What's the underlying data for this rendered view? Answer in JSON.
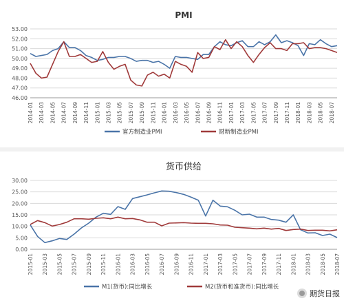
{
  "chart_data": [
    {
      "type": "line",
      "title": "PMI",
      "ylim": [
        46.0,
        53.0
      ],
      "yticks": [
        "53.00",
        "52.00",
        "51.00",
        "50.00",
        "49.00",
        "48.00",
        "47.00",
        "46.00"
      ],
      "ytick_values": [
        53,
        52,
        51,
        50,
        49,
        48,
        47,
        46
      ],
      "x": [
        "2014-01",
        "2014-02",
        "2014-03",
        "2014-04",
        "2014-05",
        "2014-06",
        "2014-07",
        "2014-08",
        "2014-09",
        "2014-10",
        "2014-11",
        "2014-12",
        "2015-01",
        "2015-02",
        "2015-03",
        "2015-04",
        "2015-05",
        "2015-06",
        "2015-07",
        "2015-08",
        "2015-09",
        "2015-10",
        "2015-11",
        "2015-12",
        "2016-01",
        "2016-02",
        "2016-03",
        "2016-04",
        "2016-05",
        "2016-06",
        "2016-07",
        "2016-08",
        "2016-09",
        "2016-10",
        "2016-11",
        "2016-12",
        "2017-01",
        "2017-02",
        "2017-03",
        "2017-04",
        "2017-05",
        "2017-06",
        "2017-07",
        "2017-08",
        "2017-09",
        "2017-10",
        "2017-11",
        "2017-12",
        "2018-01",
        "2018-02",
        "2018-03",
        "2018-04",
        "2018-05",
        "2018-06",
        "2018-07",
        "2018-08"
      ],
      "xticks": [
        "2014-01",
        "2014-03",
        "2014-05",
        "2014-07",
        "2014-09",
        "2014-11",
        "2015-01",
        "2015-03",
        "2015-05",
        "2015-07",
        "2015-09",
        "2015-11",
        "2016-01",
        "2016-03",
        "2016-05",
        "2016-07",
        "2016-09",
        "2016-11",
        "2017-01",
        "2017-03",
        "2017-05",
        "2017-07",
        "2017-09",
        "2017-11",
        "2018-01",
        "2018-03",
        "2018-05",
        "2018-07"
      ],
      "series": [
        {
          "name": "官方制造业PMI",
          "color": "#4a74a8",
          "values": [
            50.5,
            50.2,
            50.3,
            50.4,
            50.8,
            51.0,
            51.7,
            51.1,
            51.1,
            50.8,
            50.3,
            50.1,
            49.8,
            49.9,
            50.1,
            50.1,
            50.2,
            50.2,
            50.0,
            49.7,
            49.8,
            49.8,
            49.6,
            49.7,
            49.4,
            49.0,
            50.2,
            50.1,
            50.1,
            50.0,
            49.9,
            50.4,
            50.4,
            51.2,
            51.7,
            51.4,
            51.3,
            51.6,
            51.8,
            51.2,
            51.2,
            51.7,
            51.4,
            51.7,
            52.4,
            51.6,
            51.8,
            51.6,
            51.3,
            50.3,
            51.5,
            51.4,
            51.9,
            51.5,
            51.2,
            51.3
          ]
        },
        {
          "name": "财新制造业PMI",
          "color": "#a03a3a",
          "values": [
            49.5,
            48.5,
            48.0,
            48.1,
            49.4,
            50.7,
            51.7,
            50.2,
            50.2,
            50.4,
            50.0,
            49.6,
            49.7,
            50.7,
            49.6,
            48.9,
            49.2,
            49.4,
            47.8,
            47.3,
            47.2,
            48.3,
            48.6,
            48.2,
            48.4,
            48.0,
            49.7,
            49.4,
            49.2,
            48.6,
            50.6,
            50.0,
            50.1,
            51.2,
            50.9,
            51.9,
            51.0,
            51.7,
            51.2,
            50.3,
            49.6,
            50.4,
            51.1,
            51.6,
            51.0,
            51.0,
            50.8,
            51.5,
            51.5,
            51.6,
            51.0,
            51.1,
            51.1,
            51.0,
            50.8,
            50.6
          ]
        }
      ],
      "legend_position": "bottom"
    },
    {
      "type": "line",
      "title": "货币供给",
      "ylim": [
        0.0,
        30.0
      ],
      "yticks": [
        "30.00",
        "25.00",
        "20.00",
        "15.00",
        "10.00",
        "5.00",
        "0.00"
      ],
      "ytick_values": [
        30,
        25,
        20,
        15,
        10,
        5,
        0
      ],
      "x": [
        "2015-01",
        "2015-02",
        "2015-03",
        "2015-04",
        "2015-05",
        "2015-06",
        "2015-07",
        "2015-08",
        "2015-09",
        "2015-10",
        "2015-11",
        "2015-12",
        "2016-01",
        "2016-02",
        "2016-03",
        "2016-04",
        "2016-05",
        "2016-06",
        "2016-07",
        "2016-08",
        "2016-09",
        "2016-10",
        "2016-11",
        "2016-12",
        "2017-01",
        "2017-02",
        "2017-03",
        "2017-04",
        "2017-05",
        "2017-06",
        "2017-07",
        "2017-08",
        "2017-09",
        "2017-10",
        "2017-11",
        "2017-12",
        "2018-01",
        "2018-02",
        "2018-03",
        "2018-04",
        "2018-05",
        "2018-06",
        "2018-07"
      ],
      "xticks": [
        "2015-01",
        "2015-03",
        "2015-05",
        "2015-07",
        "2015-09",
        "2015-11",
        "2016-01",
        "2016-03",
        "2016-05",
        "2016-07",
        "2016-09",
        "2016-11",
        "2017-01",
        "2017-03",
        "2017-05",
        "2017-07",
        "2017-09",
        "2017-11",
        "2018-01",
        "2018-03",
        "2018-05",
        "2018-07"
      ],
      "series": [
        {
          "name": "M1(货币):同比增长",
          "color": "#4a74a8",
          "values": [
            10.6,
            5.6,
            2.9,
            3.7,
            4.7,
            4.3,
            6.6,
            9.3,
            11.4,
            14.0,
            15.7,
            15.2,
            18.6,
            17.4,
            22.1,
            22.9,
            23.7,
            24.6,
            25.4,
            25.3,
            24.7,
            23.9,
            22.7,
            21.4,
            14.5,
            21.4,
            18.8,
            18.5,
            17.0,
            15.0,
            15.3,
            14.0,
            14.0,
            13.0,
            12.7,
            11.8,
            15.0,
            8.5,
            7.1,
            7.2,
            6.0,
            6.6,
            5.1
          ]
        },
        {
          "name": "M2(货币和准货币):同比增长",
          "color": "#a03a3a",
          "values": [
            10.8,
            12.5,
            11.6,
            10.1,
            10.8,
            11.8,
            13.3,
            13.3,
            13.1,
            13.5,
            13.7,
            13.3,
            14.0,
            13.3,
            13.4,
            12.8,
            11.8,
            11.8,
            10.2,
            11.4,
            11.5,
            11.6,
            11.4,
            11.3,
            11.3,
            11.1,
            10.6,
            10.5,
            9.6,
            9.4,
            9.2,
            8.9,
            9.2,
            8.8,
            9.1,
            8.2,
            8.6,
            8.8,
            8.2,
            8.3,
            8.3,
            8.0,
            8.5
          ]
        }
      ],
      "legend_position": "bottom"
    }
  ],
  "watermark": {
    "text": "期货日报"
  }
}
